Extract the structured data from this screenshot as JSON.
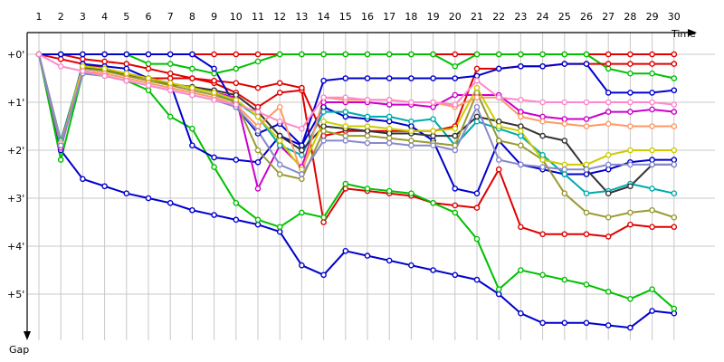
{
  "chart_data": {
    "type": "line",
    "title": "",
    "xlabel": "Time",
    "ylabel": "Gap",
    "x": [
      1,
      2,
      3,
      4,
      5,
      6,
      7,
      8,
      9,
      10,
      11,
      12,
      13,
      14,
      15,
      16,
      17,
      18,
      19,
      20,
      21,
      22,
      23,
      24,
      25,
      26,
      27,
      28,
      29,
      30
    ],
    "x_tick_labels": [
      "1",
      "2",
      "3",
      "4",
      "5",
      "6",
      "7",
      "8",
      "9",
      "10",
      "11",
      "12",
      "13",
      "14",
      "15",
      "16",
      "17",
      "18",
      "19",
      "20",
      "21",
      "22",
      "23",
      "24",
      "25",
      "26",
      "27",
      "28",
      "29",
      "30"
    ],
    "y_tick_labels": [
      "+0'",
      "+1'",
      "+2'",
      "+3'",
      "+4'",
      "+5'"
    ],
    "y_ticks": [
      0,
      1,
      2,
      3,
      4,
      5
    ],
    "ylim": [
      0,
      5.5
    ],
    "y_inverted": true,
    "grid": true,
    "series": [
      {
        "color": "#e00000",
        "values": [
          0,
          0,
          0,
          0,
          0,
          0,
          0,
          0,
          0,
          0,
          0,
          0,
          0,
          0,
          0,
          0,
          0,
          0,
          0,
          0,
          0,
          0,
          0,
          0,
          0,
          0,
          0,
          0,
          0,
          0
        ]
      },
      {
        "color": "#00c000",
        "values": [
          0,
          0,
          0,
          0,
          0,
          0.2,
          0.2,
          0.3,
          0.4,
          0.3,
          0.15,
          0,
          0,
          0,
          0,
          0,
          0,
          0,
          0,
          0.25,
          0,
          0,
          0,
          0,
          0,
          0,
          0.3,
          0.4,
          0.4,
          0.5
        ]
      },
      {
        "color": "#e00000",
        "values": [
          0,
          0,
          0.1,
          0.15,
          0.2,
          0.3,
          0.4,
          0.5,
          0.6,
          0.8,
          1.1,
          0.8,
          0.75,
          3.5,
          2.8,
          2.85,
          2.9,
          2.95,
          3.1,
          3.15,
          3.2,
          2.4,
          3.6,
          3.75,
          3.75,
          3.75,
          3.8,
          3.55,
          3.6,
          3.6
        ]
      },
      {
        "color": "#e00000",
        "values": [
          0,
          0.1,
          0.2,
          0.3,
          0.4,
          0.5,
          0.5,
          0.5,
          0.55,
          0.6,
          0.7,
          0.6,
          0.7,
          1.7,
          1.6,
          1.6,
          1.6,
          1.6,
          1.6,
          1.5,
          0.3,
          0.3,
          0.25,
          0.25,
          0.2,
          0.2,
          0.2,
          0.2,
          0.2,
          0.2
        ]
      },
      {
        "color": "#0000cc",
        "values": [
          0,
          2,
          2.6,
          2.75,
          2.9,
          3.0,
          3.1,
          3.25,
          3.35,
          3.45,
          3.55,
          3.7,
          4.4,
          4.6,
          4.1,
          4.2,
          4.3,
          4.4,
          4.5,
          4.6,
          4.7,
          5.0,
          5.4,
          5.6,
          5.6,
          5.6,
          5.65,
          5.7,
          5.35,
          5.4
        ]
      },
      {
        "color": "#00c000",
        "values": [
          0,
          2.2,
          0.4,
          0.45,
          0.55,
          0.75,
          1.3,
          1.55,
          2.35,
          3.1,
          3.45,
          3.6,
          3.3,
          3.4,
          2.7,
          2.8,
          2.85,
          2.9,
          3.1,
          3.3,
          3.85,
          4.9,
          4.5,
          4.6,
          4.7,
          4.8,
          4.95,
          5.1,
          4.9,
          5.3
        ]
      },
      {
        "color": "#0000cc",
        "values": [
          0,
          1.9,
          0.2,
          0.25,
          0.3,
          0.5,
          0.6,
          1.9,
          2.15,
          2.2,
          2.25,
          1.7,
          1.9,
          1.1,
          1.3,
          1.35,
          1.4,
          1.5,
          1.8,
          2.8,
          2.9,
          1.8,
          2.3,
          2.4,
          2.5,
          2.5,
          2.4,
          2.25,
          2.2,
          2.2
        ]
      },
      {
        "color": "#0000cc",
        "values": [
          0,
          0,
          0,
          0,
          0,
          0,
          0,
          0,
          0.3,
          1.1,
          1.65,
          1.45,
          1.9,
          0.55,
          0.5,
          0.5,
          0.5,
          0.5,
          0.5,
          0.5,
          0.45,
          0.3,
          0.25,
          0.25,
          0.2,
          0.2,
          0.8,
          0.8,
          0.8,
          0.75
        ]
      },
      {
        "color": "#cc00cc",
        "values": [
          0,
          1.95,
          0.3,
          0.35,
          0.4,
          0.5,
          0.6,
          0.7,
          0.8,
          0.9,
          2.8,
          1.9,
          2.35,
          1.0,
          1.0,
          1.0,
          1.05,
          1.05,
          1.1,
          0.85,
          0.85,
          0.85,
          1.2,
          1.3,
          1.35,
          1.35,
          1.2,
          1.2,
          1.15,
          1.2
        ]
      },
      {
        "color": "#00aaaa",
        "values": [
          0,
          1.8,
          0.25,
          0.3,
          0.4,
          0.5,
          0.6,
          0.7,
          0.8,
          1.0,
          1.3,
          1.9,
          2.1,
          1.2,
          1.2,
          1.3,
          1.3,
          1.4,
          1.35,
          1.9,
          1.4,
          1.55,
          1.7,
          2.1,
          2.5,
          2.9,
          2.85,
          2.7,
          2.8,
          2.9
        ]
      },
      {
        "color": "#333333",
        "values": [
          0,
          1.85,
          0.28,
          0.33,
          0.42,
          0.5,
          0.62,
          0.68,
          0.75,
          0.85,
          1.2,
          1.7,
          2.0,
          1.5,
          1.55,
          1.6,
          1.65,
          1.65,
          1.7,
          1.7,
          1.3,
          1.4,
          1.5,
          1.7,
          1.8,
          2.4,
          2.9,
          2.75,
          2.3,
          2.3
        ]
      },
      {
        "color": "#999933",
        "values": [
          0,
          1.9,
          0.3,
          0.35,
          0.45,
          0.55,
          0.65,
          0.75,
          0.85,
          1.0,
          2.0,
          2.5,
          2.6,
          1.6,
          1.7,
          1.7,
          1.75,
          1.8,
          1.85,
          1.9,
          0.8,
          1.8,
          1.9,
          2.2,
          2.9,
          3.3,
          3.4,
          3.3,
          3.25,
          3.4
        ]
      },
      {
        "color": "#cccc00",
        "values": [
          0,
          1.9,
          0.25,
          0.3,
          0.4,
          0.5,
          0.6,
          0.7,
          0.8,
          0.95,
          1.3,
          1.8,
          2.4,
          1.4,
          1.5,
          1.5,
          1.55,
          1.6,
          1.6,
          1.55,
          0.7,
          1.5,
          1.6,
          2.2,
          2.3,
          2.3,
          2.1,
          2.0,
          2.0,
          2.0
        ]
      },
      {
        "color": "#ff9966",
        "values": [
          0,
          1.85,
          0.35,
          0.4,
          0.5,
          0.6,
          0.7,
          0.8,
          0.9,
          1.05,
          1.5,
          1.1,
          2.5,
          0.9,
          0.95,
          0.95,
          0.95,
          1.0,
          1.0,
          1.1,
          0.9,
          0.9,
          1.3,
          1.4,
          1.45,
          1.5,
          1.45,
          1.5,
          1.5,
          1.5
        ]
      },
      {
        "color": "#8888cc",
        "values": [
          0,
          1.9,
          0.4,
          0.45,
          0.55,
          0.65,
          0.75,
          0.85,
          0.95,
          1.1,
          1.6,
          2.3,
          2.5,
          1.8,
          1.8,
          1.85,
          1.85,
          1.9,
          1.9,
          2.0,
          1.1,
          2.2,
          2.3,
          2.35,
          2.4,
          2.4,
          2.3,
          2.3,
          2.3,
          2.3
        ]
      },
      {
        "color": "#ff88cc",
        "values": [
          0,
          0.25,
          0.35,
          0.45,
          0.55,
          0.65,
          0.75,
          0.85,
          0.95,
          1.05,
          1.2,
          1.4,
          1.55,
          0.9,
          0.9,
          0.95,
          0.95,
          1.0,
          1.0,
          1.05,
          0.55,
          0.9,
          0.95,
          1.0,
          1.0,
          1.0,
          1.0,
          1.0,
          1.0,
          1.05
        ]
      }
    ]
  }
}
